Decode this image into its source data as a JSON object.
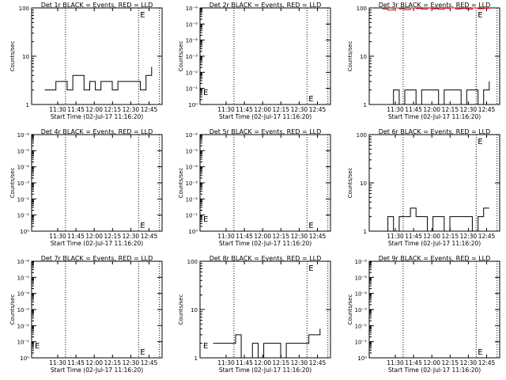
{
  "chart_data": [
    {
      "type": "line",
      "title": "Det 1r BLACK = Events, RED = LLD",
      "ylabel": "Counts/sec",
      "xlabel": "Start Time (02-Jul-17 11:16:20)",
      "yscale": "log",
      "yticks": [
        "1",
        "10",
        "100"
      ],
      "ylim_decades": 2,
      "xticks": [
        "11:30",
        "11:45",
        "12:00",
        "12:15",
        "12:30",
        "12:45"
      ],
      "e_markers": [
        "E"
      ],
      "series": [
        {
          "name": "Events",
          "color": "#000000",
          "values": [
            2,
            2,
            3,
            3,
            2,
            4,
            4,
            2,
            3,
            2,
            3,
            3,
            2,
            3,
            3,
            3,
            3,
            2,
            4,
            6
          ]
        },
        {
          "name": "LLD",
          "color": "#ff0000",
          "values": []
        }
      ]
    },
    {
      "type": "line",
      "title": "Det 2r BLACK = Events, RED = LLD",
      "ylabel": "Counts/sec",
      "xlabel": "Start Time (02-Jul-17 11:16:20)",
      "yscale": "log",
      "yticks": [
        "10⁰",
        "10⁻¹",
        "10⁻²",
        "10⁻³",
        "10⁻⁴",
        "10⁻⁵",
        "10⁻⁶"
      ],
      "ylim_decades": 6,
      "xticks": [
        "11:30",
        "11:45",
        "12:00",
        "12:15",
        "12:30",
        "12:45"
      ],
      "e_markers": [
        "E",
        "E"
      ],
      "series": []
    },
    {
      "type": "line",
      "title": "Det 3r BLACK = Events, RED = LLD",
      "ylabel": "Counts/sec",
      "xlabel": "Start Time (02-Jul-17 11:16:20)",
      "yscale": "log",
      "yticks": [
        "1",
        "10",
        "100"
      ],
      "ylim_decades": 2,
      "xticks": [
        "11:30",
        "11:45",
        "12:00",
        "12:15",
        "12:30",
        "12:45"
      ],
      "e_markers": [
        "E"
      ],
      "series": [
        {
          "name": "Events",
          "color": "#000000",
          "values": [
            1,
            1,
            2,
            1,
            2,
            2,
            1,
            2,
            2,
            2,
            1,
            2,
            2,
            2,
            1,
            2,
            2,
            1,
            2,
            3
          ]
        },
        {
          "name": "LLD",
          "color": "#ff0000",
          "values": [
            95,
            90,
            100,
            95,
            92,
            100,
            97,
            94,
            99,
            96,
            93,
            98,
            100,
            95,
            97,
            94,
            100,
            96,
            98,
            97
          ]
        }
      ]
    },
    {
      "type": "line",
      "title": "Det 4r BLACK = Events, RED = LLD",
      "ylabel": "Counts/sec",
      "xlabel": "Start Time (02-Jul-17 11:16:20)",
      "yscale": "log",
      "yticks": [
        "10⁰",
        "10⁻¹",
        "10⁻²",
        "10⁻³",
        "10⁻⁴",
        "10⁻⁵",
        "10⁻⁶"
      ],
      "ylim_decades": 6,
      "xticks": [
        "11:30",
        "11:45",
        "12:00",
        "12:15",
        "12:30",
        "12:45"
      ],
      "e_markers": [
        "E"
      ],
      "series": []
    },
    {
      "type": "line",
      "title": "Det 5r BLACK = Events, RED = LLD",
      "ylabel": "Counts/sec",
      "xlabel": "Start Time (02-Jul-17 11:16:20)",
      "yscale": "log",
      "yticks": [
        "10⁰",
        "10⁻¹",
        "10⁻²",
        "10⁻³",
        "10⁻⁴",
        "10⁻⁵",
        "10⁻⁶"
      ],
      "ylim_decades": 6,
      "xticks": [
        "11:30",
        "11:45",
        "12:00",
        "12:15",
        "12:30",
        "12:45"
      ],
      "e_markers": [
        "E",
        "E"
      ],
      "series": []
    },
    {
      "type": "line",
      "title": "Det 6r BLACK = Events, RED = LLD",
      "ylabel": "Counts/sec",
      "xlabel": "Start Time (02-Jul-17 11:16:20)",
      "yscale": "log",
      "yticks": [
        "1",
        "10",
        "100"
      ],
      "ylim_decades": 2,
      "xticks": [
        "11:30",
        "11:45",
        "12:00",
        "12:15",
        "12:30",
        "12:45"
      ],
      "e_markers": [
        "E"
      ],
      "series": [
        {
          "name": "Events",
          "color": "#000000",
          "values": [
            1,
            2,
            1,
            2,
            2,
            3,
            2,
            2,
            1,
            2,
            2,
            1,
            2,
            2,
            2,
            2,
            1,
            2,
            3,
            3
          ]
        },
        {
          "name": "LLD",
          "color": "#ff0000",
          "values": []
        }
      ]
    },
    {
      "type": "line",
      "title": "Det 7r BLACK = Events, RED = LLD",
      "ylabel": "Counts/sec",
      "xlabel": "Start Time (02-Jul-17 11:16:20)",
      "yscale": "log",
      "yticks": [
        "10⁰",
        "10⁻¹",
        "10⁻²",
        "10⁻³",
        "10⁻⁴",
        "10⁻⁵",
        "10⁻⁶"
      ],
      "ylim_decades": 6,
      "xticks": [
        "11:30",
        "11:45",
        "12:00",
        "12:15",
        "12:30",
        "12:45"
      ],
      "e_markers": [
        "E",
        "E"
      ],
      "series": []
    },
    {
      "type": "line",
      "title": "Det 8r BLACK = Events, RED = LLD",
      "ylabel": "Counts/sec",
      "xlabel": "Start Time (02-Jul-17 11:16:20)",
      "yscale": "log",
      "yticks": [
        "1",
        "10",
        "100"
      ],
      "ylim_decades": 2,
      "xticks": [
        "11:30",
        "11:45",
        "12:00",
        "12:15",
        "12:30",
        "12:45"
      ],
      "e_markers": [
        "E",
        "E"
      ],
      "series": [
        {
          "name": "Events",
          "color": "#000000",
          "values": [
            2,
            2,
            2,
            2,
            3,
            1,
            1,
            2,
            1,
            2,
            2,
            2,
            1,
            2,
            2,
            2,
            2,
            3,
            3,
            4
          ]
        },
        {
          "name": "LLD",
          "color": "#ff0000",
          "values": []
        }
      ]
    },
    {
      "type": "line",
      "title": "Det 9r BLACK = Events, RED = LLD",
      "ylabel": "Counts/sec",
      "xlabel": "Start Time (02-Jul-17 11:16:20)",
      "yscale": "log",
      "yticks": [
        "10⁰",
        "10⁻¹",
        "10⁻²",
        "10⁻³",
        "10⁻⁴",
        "10⁻⁵",
        "10⁻⁶"
      ],
      "ylim_decades": 6,
      "xticks": [
        "11:30",
        "11:45",
        "12:00",
        "12:15",
        "12:30",
        "12:45"
      ],
      "e_markers": [
        "E"
      ],
      "series": []
    }
  ]
}
